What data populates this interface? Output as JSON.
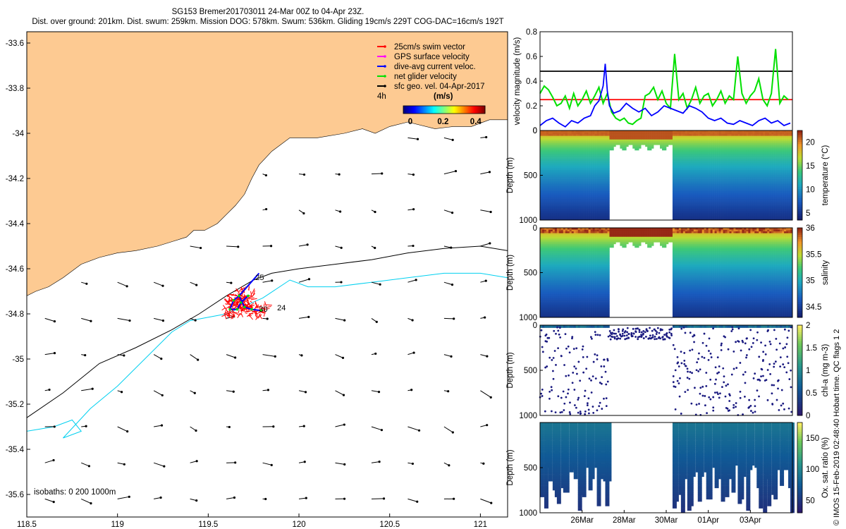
{
  "title": {
    "line1": "SG153 Bremer201703011 24-Mar 00Z to 04-Apr 23Z.",
    "line2": "Dist. over ground: 201km. Dist. swum: 259km. Mission DOG: 578km. Swum: 536km. Gliding 19cm/s 229T COG-DAC=16cm/s 192T"
  },
  "colors": {
    "land": "#fdca92",
    "sea": "#ffffff",
    "isobath_200": "#000000",
    "isobath_1000": "#00d0f0"
  },
  "chart_data": [
    {
      "type": "scatter",
      "name": "map",
      "xlim": [
        118.5,
        121.15
      ],
      "ylim": [
        -35.7,
        -33.55
      ],
      "x_ticks": [
        "118.5",
        "119",
        "119.5",
        "120",
        "120.5",
        "121"
      ],
      "y_ticks": [
        "-33.6",
        "-33.8",
        "-34",
        "-34.2",
        "-34.4",
        "-34.6",
        "-34.8",
        "-35",
        "-35.2",
        "-35.4",
        "-35.6"
      ],
      "legend": [
        {
          "label": "25cm/s swim vector",
          "color": "#ff0000"
        },
        {
          "label": "GPS surface velocity",
          "color": "#ff00ff"
        },
        {
          "label": "dive-avg current veloc.",
          "color": "#0000ff"
        },
        {
          "label": "net glider velocity",
          "color": "#00e000"
        },
        {
          "label": "sfc geo. vel. 04-Apr-2017",
          "color": "#000000"
        }
      ],
      "colorbar": {
        "period_label": "4h",
        "units": "(m/s)",
        "ticks": [
          "0",
          "0.2",
          "0.4"
        ],
        "range": [
          0,
          0.5
        ]
      },
      "isobath_label": "isobaths: 0   200  1000m",
      "track_labels": [
        "25",
        "30",
        "24"
      ],
      "track_points": [
        [
          119.72,
          -34.72
        ],
        [
          119.68,
          -34.75
        ],
        [
          119.66,
          -34.78
        ],
        [
          119.62,
          -34.78
        ],
        [
          119.64,
          -34.74
        ],
        [
          119.67,
          -34.72
        ],
        [
          119.7,
          -34.77
        ],
        [
          119.74,
          -34.78
        ],
        [
          119.79,
          -34.785
        ]
      ]
    },
    {
      "type": "line",
      "name": "velocity-magnitude",
      "ylabel": "velocity magnitude (m/s)",
      "ylim": [
        0,
        0.8
      ],
      "y_ticks": [
        "0",
        "0.2",
        "0.4",
        "0.6",
        "0.8"
      ],
      "xlim": [
        0,
        12
      ],
      "series": [
        {
          "name": "swim vector",
          "color": "#ff0000",
          "x": [
            0,
            3.3,
            3.3,
            12
          ],
          "values": [
            0.25,
            0.25,
            0.25,
            0.25
          ]
        },
        {
          "name": "sfc geo vel",
          "color": "#000000",
          "x": [
            0,
            12
          ],
          "values": [
            0.48,
            0.48
          ]
        },
        {
          "name": "net glider velocity",
          "color": "#00e000",
          "x": [
            0,
            0.2,
            0.4,
            0.6,
            0.8,
            1.0,
            1.2,
            1.4,
            1.6,
            1.8,
            2.0,
            2.2,
            2.4,
            2.6,
            2.8,
            3.0,
            3.2,
            3.4,
            3.6,
            3.8,
            4.0,
            4.2,
            4.4,
            4.6,
            4.8,
            5.0,
            5.2,
            5.4,
            5.6,
            5.8,
            6.0,
            6.2,
            6.4,
            6.6,
            6.8,
            7.0,
            7.2,
            7.4,
            7.6,
            7.8,
            8.0,
            8.2,
            8.4,
            8.6,
            8.8,
            9.0,
            9.2,
            9.4,
            9.6,
            9.8,
            10.0,
            10.2,
            10.4,
            10.6,
            10.8,
            11.0,
            11.2,
            11.4,
            11.6,
            11.8
          ],
          "values": [
            0.3,
            0.36,
            0.33,
            0.27,
            0.2,
            0.22,
            0.28,
            0.18,
            0.3,
            0.2,
            0.25,
            0.32,
            0.22,
            0.28,
            0.35,
            0.22,
            0.3,
            0.15,
            0.1,
            0.08,
            0.1,
            0.06,
            0.05,
            0.08,
            0.1,
            0.28,
            0.3,
            0.35,
            0.25,
            0.32,
            0.22,
            0.18,
            0.62,
            0.25,
            0.3,
            0.18,
            0.25,
            0.35,
            0.22,
            0.28,
            0.3,
            0.2,
            0.25,
            0.32,
            0.22,
            0.28,
            0.25,
            0.6,
            0.3,
            0.22,
            0.28,
            0.32,
            0.42,
            0.25,
            0.2,
            0.3,
            0.66,
            0.22,
            0.28,
            0.25
          ]
        },
        {
          "name": "dive-avg current",
          "color": "#0000ff",
          "x": [
            0,
            0.3,
            0.6,
            0.9,
            1.2,
            1.5,
            1.8,
            2.1,
            2.4,
            2.6,
            2.8,
            3.0,
            3.1,
            3.2,
            3.3,
            3.5,
            3.8,
            4.1,
            4.4,
            4.7,
            5.0,
            5.3,
            5.6,
            5.9,
            6.2,
            6.5,
            6.8,
            7.1,
            7.4,
            7.7,
            8.0,
            8.3,
            8.6,
            8.9,
            9.2,
            9.5,
            9.8,
            10.1,
            10.4,
            10.7,
            11.0,
            11.3,
            11.6,
            11.9
          ],
          "values": [
            0.04,
            0.08,
            0.1,
            0.06,
            0.03,
            0.08,
            0.06,
            0.1,
            0.12,
            0.2,
            0.24,
            0.36,
            0.54,
            0.32,
            0.2,
            0.14,
            0.16,
            0.22,
            0.18,
            0.15,
            0.18,
            0.12,
            0.15,
            0.2,
            0.18,
            0.16,
            0.14,
            0.2,
            0.18,
            0.15,
            0.1,
            0.08,
            0.1,
            0.06,
            0.05,
            0.08,
            0.06,
            0.04,
            0.08,
            0.1,
            0.06,
            0.08,
            0.04,
            0.06
          ]
        }
      ]
    },
    {
      "type": "heatmap",
      "name": "temperature",
      "ylabel": "Depth (m)",
      "colorbar_label": "temperature (°C)",
      "colorbar_ticks": [
        "5",
        "10",
        "15",
        "20"
      ],
      "colorbar_range": [
        3.5,
        22.5
      ],
      "ylim": [
        1000,
        0
      ],
      "y_ticks": [
        "0",
        "500",
        "1000"
      ],
      "depths": [
        0,
        100,
        200,
        300,
        500,
        700,
        1000
      ],
      "surface_value": 21,
      "deep_value": 4.5
    },
    {
      "type": "heatmap",
      "name": "salinity",
      "ylabel": "Depth (m)",
      "colorbar_label": "salinity",
      "colorbar_ticks": [
        "34.5",
        "35",
        "35.5",
        "36"
      ],
      "colorbar_range": [
        34.3,
        36.0
      ],
      "ylim": [
        1000,
        0
      ],
      "y_ticks": [
        "0",
        "500",
        "1000"
      ],
      "surface_value": 35.9,
      "deep_value": 34.4
    },
    {
      "type": "scatter",
      "name": "chl-a",
      "ylabel": "Depth (m)",
      "colorbar_label": "chl-a (mg m-3)",
      "colorbar_ticks": [
        "0",
        "0.5",
        "1",
        "1.5",
        "2"
      ],
      "colorbar_range": [
        0,
        2
      ],
      "ylim": [
        1000,
        0
      ],
      "y_ticks": [
        "0",
        "500",
        "1000"
      ],
      "surface_value": 0.7,
      "deep_value": 0.02
    },
    {
      "type": "scatter",
      "name": "oxygen",
      "ylabel": "Depth (m)",
      "colorbar_label": "Ox. sat. ratio (%)",
      "colorbar_ticks": [
        "50",
        "100",
        "150"
      ],
      "colorbar_range": [
        30,
        175
      ],
      "ylim": [
        1000,
        0
      ],
      "y_ticks": [
        "500",
        "1000"
      ],
      "x_ticks": [
        "26Mar",
        "28Mar",
        "30Mar",
        "01Apr",
        "03Apr"
      ],
      "surface_value": 90,
      "deep_value": 45
    }
  ],
  "time_axis": {
    "start_label": "24-Mar",
    "days": 12,
    "gap_start_day": 3.3,
    "gap_end_day": 6.3
  },
  "side_note": "© IMOS 15-Feb-2019 02:48:40 Hobart time. QC flags 1  2"
}
